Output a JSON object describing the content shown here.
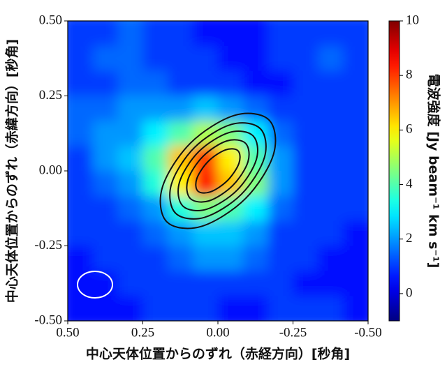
{
  "chart_data": {
    "type": "heatmap",
    "xlabel": "中心天体位置からのずれ（赤経方向）[秒角]",
    "ylabel": "中心天体位置からのずれ（赤緯方向）[秒角]",
    "colorbar_label": "電波強度 [Jy beam⁻¹ km s⁻¹]",
    "xlim": [
      0.5,
      -0.5
    ],
    "ylim": [
      -0.5,
      0.5
    ],
    "xticks": [
      {
        "value": 0.5,
        "label": "0.50"
      },
      {
        "value": 0.25,
        "label": "0.25"
      },
      {
        "value": 0,
        "label": "0.00"
      },
      {
        "value": -0.25,
        "label": "-0.25"
      },
      {
        "value": -0.5,
        "label": "-0.50"
      }
    ],
    "yticks": [
      {
        "value": 0.5,
        "label": "0.50"
      },
      {
        "value": 0.25,
        "label": "0.25"
      },
      {
        "value": 0,
        "label": "0.00"
      },
      {
        "value": -0.25,
        "label": "-0.25"
      },
      {
        "value": -0.5,
        "label": "-0.50"
      }
    ],
    "clim": [
      -1,
      10
    ],
    "cticks": [
      0,
      2,
      4,
      6,
      8,
      10
    ],
    "colormap": "jet",
    "z": [
      [
        1,
        1,
        1.5,
        1,
        1,
        0.5,
        0.5,
        0.5,
        1,
        1,
        1,
        1
      ],
      [
        1,
        1.5,
        1.5,
        1,
        1,
        1,
        0.5,
        0.5,
        1,
        1,
        1.5,
        1
      ],
      [
        1,
        1,
        1.5,
        1.5,
        1,
        1,
        1,
        0.5,
        0.5,
        1,
        1,
        1
      ],
      [
        1.5,
        1.5,
        2,
        2,
        2,
        2.5,
        2,
        1.5,
        1,
        1,
        1,
        1
      ],
      [
        1.5,
        2,
        2,
        3,
        4,
        5,
        4.5,
        3,
        1.5,
        1,
        1,
        1
      ],
      [
        1,
        2,
        2.5,
        4,
        6.5,
        8,
        6,
        4,
        2,
        1,
        1,
        1
      ],
      [
        1,
        1.5,
        2,
        3.5,
        6,
        8.5,
        6.5,
        4.5,
        2,
        1,
        1,
        1
      ],
      [
        1,
        1,
        1.5,
        2,
        3.5,
        4.5,
        4,
        3,
        1.5,
        1,
        1,
        1
      ],
      [
        1,
        1,
        1,
        1.5,
        2,
        2.5,
        2.5,
        2,
        1,
        1,
        1,
        0.5
      ],
      [
        0.5,
        1,
        1,
        1,
        1.5,
        2,
        2,
        1.5,
        1,
        1,
        0.5,
        0.5
      ],
      [
        0.5,
        0.5,
        1,
        1,
        1,
        1,
        1,
        1,
        1,
        0.5,
        0.5,
        0.5
      ],
      [
        0.5,
        0.5,
        0.5,
        1,
        1,
        1,
        0.5,
        0.5,
        1,
        1,
        1,
        0.5
      ]
    ],
    "contour_color": "#111111",
    "contours": [
      {
        "x": [
          -0.17,
          -0.055,
          0.092,
          0.185,
          0.17,
          0.055,
          -0.092,
          -0.185
        ],
        "y": [
          0.17,
          0.185,
          0.092,
          -0.055,
          -0.17,
          -0.185,
          -0.092,
          0.055
        ]
      },
      {
        "x": [
          -0.141,
          -0.045,
          0.078,
          0.155,
          0.141,
          0.045,
          -0.078,
          -0.155
        ],
        "y": [
          0.141,
          0.155,
          0.078,
          -0.045,
          -0.141,
          -0.155,
          -0.078,
          0.045
        ]
      },
      {
        "x": [
          -0.117,
          -0.038,
          0.064,
          0.128,
          0.117,
          0.038,
          -0.064,
          -0.128
        ],
        "y": [
          0.117,
          0.128,
          0.064,
          -0.038,
          -0.117,
          -0.128,
          -0.064,
          0.038
        ]
      },
      {
        "x": [
          -0.092,
          -0.03,
          0.049,
          0.1,
          0.092,
          0.03,
          -0.049,
          -0.1
        ],
        "y": [
          0.092,
          0.1,
          0.049,
          -0.03,
          -0.092,
          -0.1,
          -0.049,
          0.03
        ]
      },
      {
        "x": [
          -0.067,
          -0.025,
          0.032,
          0.07,
          0.067,
          0.025,
          -0.032,
          -0.07
        ],
        "y": [
          0.067,
          0.07,
          0.032,
          -0.025,
          -0.067,
          -0.07,
          -0.032,
          0.025
        ]
      }
    ]
  }
}
